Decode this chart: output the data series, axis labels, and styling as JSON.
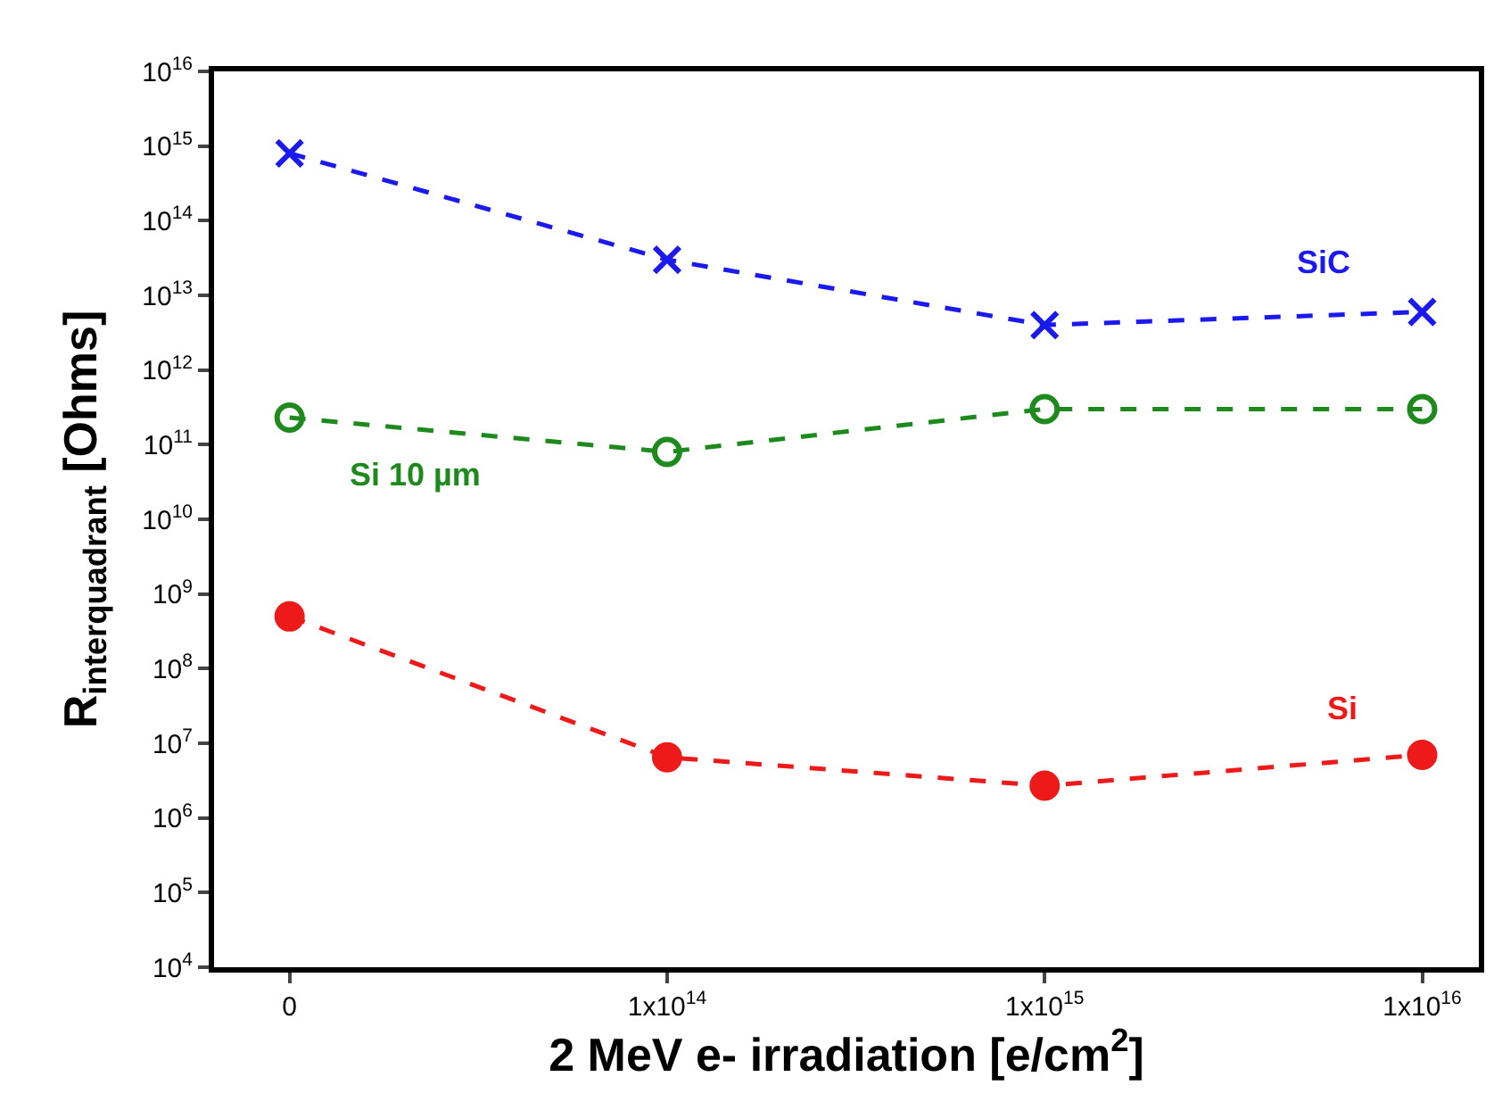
{
  "chart_data": {
    "type": "line",
    "xlabel": "2 MeV e- irradiation [e/cm$^{2}$]",
    "ylabel": "R$_{interquadrant}$ [Ohms]",
    "categories": [
      "0",
      "1x10$^{14}$",
      "1x10$^{15}$",
      "1x10$^{16}$"
    ],
    "series": [
      {
        "name": "SiC",
        "color": "#1a1aee",
        "marker": "cross",
        "values": [
          800000000000000.0,
          30000000000000.0,
          4000000000000.0,
          6000000000000.0
        ]
      },
      {
        "name": "Si 10 µm",
        "color": "#1e8a1e",
        "marker": "circle-open",
        "values": [
          230000000000.0,
          80000000000.0,
          300000000000.0,
          300000000000.0
        ]
      },
      {
        "name": "Si",
        "color": "#ee1a1a",
        "marker": "circle",
        "values": [
          500000000.0,
          6500000.0,
          2700000.0,
          7000000.0
        ]
      }
    ],
    "log": true,
    "ylim": [
      10000.0,
      1e+16
    ],
    "yticks": [
      {
        "value": 10000.0,
        "label": "10$^{4}$"
      },
      {
        "value": 100000.0,
        "label": "10$^{5}$"
      },
      {
        "value": 1000000.0,
        "label": "10$^{6}$"
      },
      {
        "value": 10000000.0,
        "label": "10$^{7}$"
      },
      {
        "value": 100000000.0,
        "label": "10$^{8}$"
      },
      {
        "value": 1000000000.0,
        "label": "10$^{9}$"
      },
      {
        "value": 10000000000.0,
        "label": "10$^{10}$"
      },
      {
        "value": 100000000000.0,
        "label": "10$^{11}$"
      },
      {
        "value": 1000000000000.0,
        "label": "10$^{12}$"
      },
      {
        "value": 10000000000000.0,
        "label": "10$^{13}$"
      },
      {
        "value": 100000000000000.0,
        "label": "10$^{14}$"
      },
      {
        "value": 1000000000000000.0,
        "label": "10$^{15}$"
      },
      {
        "value": 1e+16,
        "label": "10$^{16}$"
      }
    ],
    "line_style": "dashed",
    "legend": false
  }
}
